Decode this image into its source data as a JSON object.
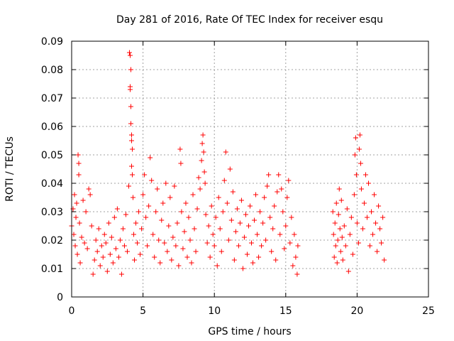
{
  "chart_data": {
    "type": "scatter",
    "title": "Day 281 of 2016, Rate Of TEC Index for receiver esqu",
    "xlabel": "GPS time / hours",
    "ylabel": "ROTI / TECUs",
    "xlim": [
      0,
      25
    ],
    "ylim": [
      0,
      0.09
    ],
    "xticks": [
      0,
      5,
      10,
      15,
      20,
      25
    ],
    "xtick_labels": [
      "0",
      "5",
      "10",
      "15",
      "20",
      "25"
    ],
    "yticks": [
      0,
      0.01,
      0.02,
      0.03,
      0.04,
      0.05,
      0.06,
      0.07,
      0.08,
      0.09
    ],
    "ytick_labels": [
      "0",
      "0.01",
      "0.02",
      "0.03",
      "0.04",
      "0.05",
      "0.06",
      "0.07",
      "0.08",
      "0.09"
    ],
    "grid": true,
    "marker": "+",
    "color": "#ff0000",
    "series": [
      {
        "name": "ROTI",
        "points": [
          [
            0.0,
            0.025
          ],
          [
            0.1,
            0.031
          ],
          [
            0.15,
            0.022
          ],
          [
            0.2,
            0.036
          ],
          [
            0.25,
            0.018
          ],
          [
            0.3,
            0.028
          ],
          [
            0.35,
            0.033
          ],
          [
            0.4,
            0.015
          ],
          [
            0.45,
            0.05
          ],
          [
            0.5,
            0.047
          ],
          [
            0.5,
            0.043
          ],
          [
            0.55,
            0.026
          ],
          [
            0.6,
            0.012
          ],
          [
            0.7,
            0.021
          ],
          [
            0.8,
            0.034
          ],
          [
            0.9,
            0.019
          ],
          [
            1.0,
            0.03
          ],
          [
            1.1,
            0.017
          ],
          [
            1.2,
            0.038
          ],
          [
            1.3,
            0.036
          ],
          [
            1.4,
            0.025
          ],
          [
            1.5,
            0.008
          ],
          [
            1.6,
            0.013
          ],
          [
            1.7,
            0.02
          ],
          [
            1.8,
            0.016
          ],
          [
            1.9,
            0.024
          ],
          [
            2.0,
            0.011
          ],
          [
            2.1,
            0.018
          ],
          [
            2.2,
            0.014
          ],
          [
            2.3,
            0.022
          ],
          [
            2.4,
            0.019
          ],
          [
            2.5,
            0.009
          ],
          [
            2.6,
            0.026
          ],
          [
            2.7,
            0.015
          ],
          [
            2.8,
            0.021
          ],
          [
            2.9,
            0.012
          ],
          [
            3.0,
            0.028
          ],
          [
            3.1,
            0.017
          ],
          [
            3.2,
            0.031
          ],
          [
            3.3,
            0.014
          ],
          [
            3.4,
            0.02
          ],
          [
            3.5,
            0.008
          ],
          [
            3.6,
            0.024
          ],
          [
            3.7,
            0.018
          ],
          [
            3.8,
            0.029
          ],
          [
            3.9,
            0.016
          ],
          [
            4.0,
            0.039
          ],
          [
            4.05,
            0.086
          ],
          [
            4.1,
            0.085
          ],
          [
            4.15,
            0.08
          ],
          [
            4.1,
            0.074
          ],
          [
            4.1,
            0.073
          ],
          [
            4.15,
            0.067
          ],
          [
            4.15,
            0.061
          ],
          [
            4.2,
            0.057
          ],
          [
            4.2,
            0.055
          ],
          [
            4.25,
            0.052
          ],
          [
            4.2,
            0.046
          ],
          [
            4.25,
            0.043
          ],
          [
            4.3,
            0.035
          ],
          [
            4.35,
            0.022
          ],
          [
            4.4,
            0.013
          ],
          [
            4.5,
            0.026
          ],
          [
            4.6,
            0.019
          ],
          [
            4.7,
            0.03
          ],
          [
            4.8,
            0.015
          ],
          [
            4.9,
            0.024
          ],
          [
            5.0,
            0.036
          ],
          [
            5.1,
            0.043
          ],
          [
            5.2,
            0.028
          ],
          [
            5.3,
            0.018
          ],
          [
            5.4,
            0.032
          ],
          [
            5.5,
            0.049
          ],
          [
            5.6,
            0.041
          ],
          [
            5.7,
            0.022
          ],
          [
            5.8,
            0.014
          ],
          [
            5.9,
            0.03
          ],
          [
            6.0,
            0.038
          ],
          [
            6.1,
            0.02
          ],
          [
            6.2,
            0.012
          ],
          [
            6.3,
            0.027
          ],
          [
            6.4,
            0.033
          ],
          [
            6.5,
            0.019
          ],
          [
            6.6,
            0.04
          ],
          [
            6.7,
            0.016
          ],
          [
            6.8,
            0.025
          ],
          [
            6.9,
            0.035
          ],
          [
            7.0,
            0.013
          ],
          [
            7.1,
            0.021
          ],
          [
            7.2,
            0.039
          ],
          [
            7.3,
            0.018
          ],
          [
            7.4,
            0.026
          ],
          [
            7.5,
            0.011
          ],
          [
            7.6,
            0.052
          ],
          [
            7.65,
            0.047
          ],
          [
            7.7,
            0.03
          ],
          [
            7.8,
            0.017
          ],
          [
            7.9,
            0.023
          ],
          [
            8.0,
            0.033
          ],
          [
            8.1,
            0.014
          ],
          [
            8.2,
            0.028
          ],
          [
            8.3,
            0.02
          ],
          [
            8.4,
            0.012
          ],
          [
            8.5,
            0.036
          ],
          [
            8.6,
            0.024
          ],
          [
            8.7,
            0.016
          ],
          [
            8.8,
            0.031
          ],
          [
            8.9,
            0.042
          ],
          [
            9.0,
            0.038
          ],
          [
            9.1,
            0.048
          ],
          [
            9.15,
            0.054
          ],
          [
            9.2,
            0.057
          ],
          [
            9.25,
            0.051
          ],
          [
            9.3,
            0.044
          ],
          [
            9.35,
            0.04
          ],
          [
            9.4,
            0.029
          ],
          [
            9.5,
            0.019
          ],
          [
            9.6,
            0.025
          ],
          [
            9.7,
            0.014
          ],
          [
            9.8,
            0.032
          ],
          [
            9.9,
            0.022
          ],
          [
            10.0,
            0.018
          ],
          [
            10.1,
            0.028
          ],
          [
            10.2,
            0.011
          ],
          [
            10.3,
            0.035
          ],
          [
            10.4,
            0.024
          ],
          [
            10.5,
            0.016
          ],
          [
            10.6,
            0.03
          ],
          [
            10.7,
            0.041
          ],
          [
            10.8,
            0.051
          ],
          [
            10.9,
            0.033
          ],
          [
            11.0,
            0.02
          ],
          [
            11.1,
            0.045
          ],
          [
            11.2,
            0.027
          ],
          [
            11.3,
            0.037
          ],
          [
            11.4,
            0.013
          ],
          [
            11.5,
            0.023
          ],
          [
            11.6,
            0.031
          ],
          [
            11.7,
            0.018
          ],
          [
            11.8,
            0.026
          ],
          [
            11.9,
            0.034
          ],
          [
            12.0,
            0.01
          ],
          [
            12.1,
            0.021
          ],
          [
            12.2,
            0.029
          ],
          [
            12.3,
            0.015
          ],
          [
            12.4,
            0.025
          ],
          [
            12.5,
            0.032
          ],
          [
            12.6,
            0.019
          ],
          [
            12.7,
            0.012
          ],
          [
            12.8,
            0.027
          ],
          [
            12.9,
            0.036
          ],
          [
            13.0,
            0.022
          ],
          [
            13.1,
            0.014
          ],
          [
            13.2,
            0.03
          ],
          [
            13.3,
            0.018
          ],
          [
            13.4,
            0.026
          ],
          [
            13.5,
            0.035
          ],
          [
            13.6,
            0.02
          ],
          [
            13.7,
            0.039
          ],
          [
            13.8,
            0.043
          ],
          [
            13.9,
            0.028
          ],
          [
            14.0,
            0.016
          ],
          [
            14.1,
            0.024
          ],
          [
            14.2,
            0.032
          ],
          [
            14.3,
            0.013
          ],
          [
            14.4,
            0.037
          ],
          [
            14.5,
            0.043
          ],
          [
            14.6,
            0.022
          ],
          [
            14.7,
            0.038
          ],
          [
            14.8,
            0.03
          ],
          [
            14.9,
            0.017
          ],
          [
            15.0,
            0.025
          ],
          [
            15.1,
            0.035
          ],
          [
            15.2,
            0.041
          ],
          [
            15.3,
            0.019
          ],
          [
            15.4,
            0.028
          ],
          [
            15.5,
            0.011
          ],
          [
            15.6,
            0.022
          ],
          [
            15.7,
            0.014
          ],
          [
            15.8,
            0.008
          ],
          [
            15.85,
            0.018
          ],
          [
            18.3,
            0.03
          ],
          [
            18.35,
            0.022
          ],
          [
            18.4,
            0.014
          ],
          [
            18.45,
            0.026
          ],
          [
            18.5,
            0.018
          ],
          [
            18.55,
            0.033
          ],
          [
            18.6,
            0.012
          ],
          [
            18.65,
            0.02
          ],
          [
            18.7,
            0.029
          ],
          [
            18.75,
            0.038
          ],
          [
            18.8,
            0.024
          ],
          [
            18.85,
            0.016
          ],
          [
            18.9,
            0.034
          ],
          [
            18.95,
            0.021
          ],
          [
            19.0,
            0.013
          ],
          [
            19.1,
            0.025
          ],
          [
            19.2,
            0.018
          ],
          [
            19.3,
            0.031
          ],
          [
            19.4,
            0.009
          ],
          [
            19.5,
            0.022
          ],
          [
            19.6,
            0.028
          ],
          [
            19.7,
            0.015
          ],
          [
            19.8,
            0.036
          ],
          [
            19.85,
            0.05
          ],
          [
            19.9,
            0.056
          ],
          [
            19.95,
            0.043
          ],
          [
            20.0,
            0.026
          ],
          [
            20.1,
            0.019
          ],
          [
            20.15,
            0.052
          ],
          [
            20.2,
            0.057
          ],
          [
            20.25,
            0.047
          ],
          [
            20.3,
            0.038
          ],
          [
            20.4,
            0.024
          ],
          [
            20.5,
            0.033
          ],
          [
            20.6,
            0.043
          ],
          [
            20.7,
            0.028
          ],
          [
            20.8,
            0.04
          ],
          [
            20.9,
            0.018
          ],
          [
            21.0,
            0.03
          ],
          [
            21.1,
            0.022
          ],
          [
            21.2,
            0.036
          ],
          [
            21.3,
            0.026
          ],
          [
            21.4,
            0.016
          ],
          [
            21.5,
            0.032
          ],
          [
            21.6,
            0.024
          ],
          [
            21.7,
            0.019
          ],
          [
            21.8,
            0.028
          ],
          [
            21.9,
            0.013
          ]
        ]
      }
    ]
  }
}
